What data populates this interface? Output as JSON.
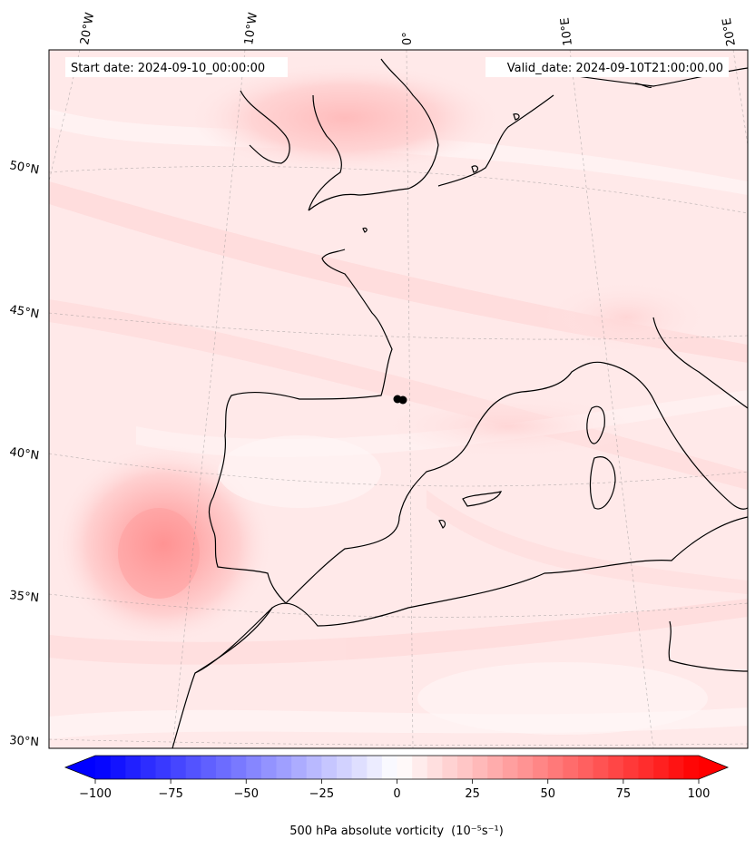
{
  "map": {
    "start_label": "Start date: 2024-09-10_00:00:00",
    "valid_label": "Valid_date: 2024-09-10T21:00:00.00",
    "longitude_labels": [
      "20°W",
      "10°W",
      "0°",
      "10°E",
      "20°E"
    ],
    "latitude_labels": [
      "50°N",
      "45°N",
      "40°N",
      "35°N",
      "30°N"
    ],
    "variable": "500 hPa absolute vorticity",
    "units": "(10⁻⁵s⁻¹)"
  },
  "colorbar": {
    "min": -100,
    "max": 100,
    "ticks": [
      "−100",
      "−75",
      "−50",
      "−25",
      "0",
      "25",
      "50",
      "75",
      "100"
    ],
    "cmap": "bwr",
    "low_color": "#0000ff",
    "mid_color": "#ffffff",
    "high_color": "#ff0000"
  }
}
